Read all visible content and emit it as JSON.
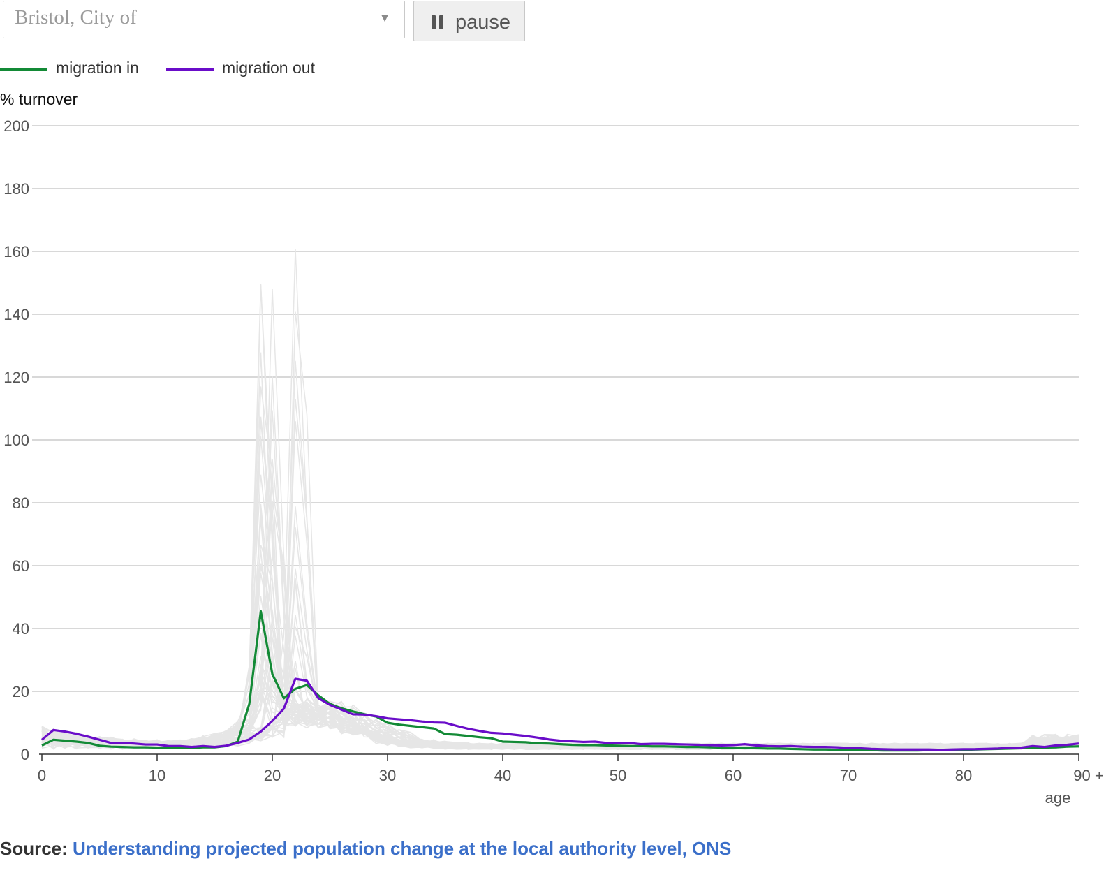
{
  "controls": {
    "area_select": {
      "value": "Bristol, City of",
      "arrow_icon": "triangle-down-icon"
    },
    "pause_button": {
      "label": "pause",
      "icon": "pause-icon"
    }
  },
  "colors": {
    "migration_in": "#138a36",
    "migration_out": "#6a0dc9",
    "background_series": "#e6e6e6",
    "gridline": "#cccccc",
    "axis": "#333333",
    "source_link": "#3b6fc9"
  },
  "legend": [
    {
      "label": "migration in",
      "color": "#138a36"
    },
    {
      "label": "migration out",
      "color": "#6a0dc9"
    }
  ],
  "source": {
    "prefix": "Source:",
    "link_text": "Understanding projected population change at the local authority level, ONS"
  },
  "chart_data": {
    "type": "line",
    "ylabel": "% turnover",
    "xlabel": "age",
    "xlim": [
      0,
      90
    ],
    "ylim": [
      0,
      200
    ],
    "x_ticks": [
      0,
      10,
      20,
      30,
      40,
      50,
      60,
      70,
      80,
      90
    ],
    "x_tick_labels": [
      "0",
      "10",
      "20",
      "30",
      "40",
      "50",
      "60",
      "70",
      "80",
      "90 +"
    ],
    "y_ticks": [
      0,
      20,
      40,
      60,
      80,
      100,
      120,
      140,
      160,
      180,
      200
    ],
    "grid": "horizontal",
    "legend_position": "top-left",
    "x": [
      0,
      1,
      2,
      3,
      4,
      5,
      6,
      7,
      8,
      9,
      10,
      11,
      12,
      13,
      14,
      15,
      16,
      17,
      18,
      19,
      20,
      21,
      22,
      23,
      24,
      25,
      26,
      27,
      28,
      29,
      30,
      31,
      32,
      33,
      34,
      35,
      36,
      37,
      38,
      39,
      40,
      41,
      42,
      43,
      44,
      45,
      46,
      47,
      48,
      49,
      50,
      51,
      52,
      53,
      54,
      55,
      56,
      57,
      58,
      59,
      60,
      61,
      62,
      63,
      64,
      65,
      66,
      67,
      68,
      69,
      70,
      71,
      72,
      73,
      74,
      75,
      76,
      77,
      78,
      79,
      80,
      81,
      82,
      83,
      84,
      85,
      86,
      87,
      88,
      89,
      90
    ],
    "series": [
      {
        "name": "migration in",
        "color": "#138a36",
        "values": [
          2.8,
          4.6,
          4.3,
          4.0,
          3.6,
          2.7,
          2.4,
          2.3,
          2.2,
          2.2,
          2.1,
          2.1,
          2.0,
          2.0,
          2.2,
          2.2,
          2.6,
          4.0,
          16,
          45.5,
          25.5,
          17.8,
          20.8,
          22,
          18.7,
          16,
          14.6,
          13.6,
          12.7,
          12,
          10,
          9.4,
          9,
          8.6,
          8.2,
          6.4,
          6.2,
          5.8,
          5.4,
          5.1,
          4,
          3.9,
          3.8,
          3.5,
          3.4,
          3.2,
          3.0,
          2.9,
          2.9,
          2.8,
          2.7,
          2.6,
          2.6,
          2.5,
          2.5,
          2.4,
          2.3,
          2.3,
          2.2,
          2.1,
          2.0,
          2.0,
          1.9,
          1.8,
          1.8,
          1.7,
          1.6,
          1.5,
          1.5,
          1.4,
          1.3,
          1.3,
          1.3,
          1.2,
          1.2,
          1.2,
          1.2,
          1.3,
          1.3,
          1.4,
          1.4,
          1.5,
          1.6,
          1.7,
          1.8,
          1.9,
          2.0,
          2.1,
          2.2,
          2.4,
          2.5
        ]
      },
      {
        "name": "migration out",
        "color": "#6a0dc9",
        "values": [
          4.6,
          7.7,
          7.2,
          6.5,
          5.6,
          4.6,
          3.6,
          3.6,
          3.4,
          3.1,
          3.1,
          2.6,
          2.6,
          2.3,
          2.6,
          2.3,
          2.7,
          3.6,
          4.7,
          7.2,
          10.6,
          14.5,
          24,
          23.4,
          17.8,
          15.7,
          14.2,
          12.7,
          12.6,
          12.1,
          11.4,
          11.1,
          10.8,
          10.4,
          10.1,
          10,
          9,
          8.1,
          7.4,
          6.8,
          6.6,
          6.2,
          5.8,
          5.3,
          4.7,
          4.3,
          4.1,
          3.9,
          4.0,
          3.6,
          3.5,
          3.6,
          3.2,
          3.3,
          3.3,
          3.2,
          3.1,
          3.0,
          2.9,
          2.8,
          2.9,
          3.2,
          2.8,
          2.6,
          2.5,
          2.6,
          2.4,
          2.3,
          2.3,
          2.2,
          2.0,
          1.9,
          1.7,
          1.6,
          1.5,
          1.5,
          1.5,
          1.5,
          1.4,
          1.5,
          1.6,
          1.6,
          1.7,
          1.8,
          2.0,
          2.1,
          2.6,
          2.3,
          2.8,
          3.0,
          3.4
        ]
      }
    ]
  }
}
